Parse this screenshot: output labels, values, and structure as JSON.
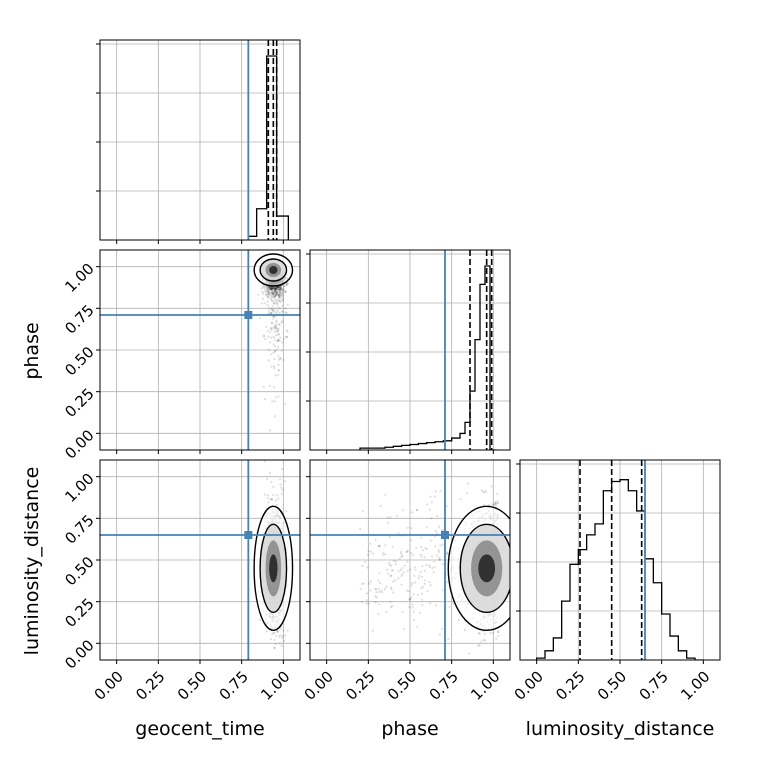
{
  "chart_data": {
    "type": "corner",
    "parameters": [
      "geocent_time",
      "phase",
      "luminosity_distance"
    ],
    "axis_labels": {
      "x": [
        "geocent_time",
        "phase",
        "luminosity_distance"
      ],
      "y": [
        "phase",
        "luminosity_distance"
      ]
    },
    "tick_labels": [
      "0.00",
      "0.25",
      "0.50",
      "0.75",
      "1.00"
    ],
    "tick_values": [
      0,
      0.25,
      0.5,
      0.75,
      1.0
    ],
    "axis_range": [
      -0.1,
      1.1
    ],
    "grid": true,
    "truth_values": {
      "geocent_time": 0.79,
      "phase": 0.71,
      "luminosity_distance": 0.65
    },
    "truth_color": "#4682b4",
    "histograms": {
      "geocent_time": {
        "bin_edges": [
          0.79,
          0.84,
          0.9,
          0.96,
          1.03
        ],
        "counts": [
          0.02,
          0.17,
          1.0,
          0.13
        ],
        "quantile_lines": [
          0.91,
          0.94,
          0.96
        ]
      },
      "phase": {
        "bin_edges": [
          0.2,
          0.25,
          0.3,
          0.35,
          0.4,
          0.45,
          0.5,
          0.55,
          0.6,
          0.65,
          0.7,
          0.75,
          0.8,
          0.83,
          0.86,
          0.89,
          0.92,
          0.95,
          0.98,
          1.02
        ],
        "counts": [
          0.01,
          0.01,
          0.01,
          0.015,
          0.02,
          0.025,
          0.03,
          0.035,
          0.04,
          0.045,
          0.05,
          0.065,
          0.09,
          0.15,
          0.32,
          0.6,
          0.9,
          1.0,
          0.0
        ],
        "quantile_lines": [
          0.86,
          0.96,
          0.99
        ]
      },
      "luminosity_distance": {
        "bin_edges": [
          0.0,
          0.05,
          0.1,
          0.15,
          0.2,
          0.25,
          0.3,
          0.35,
          0.4,
          0.45,
          0.5,
          0.55,
          0.6,
          0.65,
          0.7,
          0.75,
          0.8,
          0.85,
          0.9,
          0.95,
          1.0
        ],
        "counts": [
          0.01,
          0.05,
          0.12,
          0.32,
          0.52,
          0.6,
          0.68,
          0.74,
          0.92,
          0.97,
          0.98,
          0.92,
          0.81,
          0.55,
          0.42,
          0.25,
          0.13,
          0.05,
          0.01,
          0.0
        ],
        "quantile_lines": [
          0.26,
          0.45,
          0.63
        ]
      }
    },
    "scatter_panels": [
      {
        "x_param": "geocent_time",
        "y_param": "phase",
        "x_center": 0.95,
        "x_spread": 0.03,
        "y_center": 0.96,
        "y_spread": 0.06,
        "y_tail": 0.0
      },
      {
        "x_param": "geocent_time",
        "y_param": "luminosity_distance",
        "x_center": 0.95,
        "x_spread": 0.03,
        "y_center": 0.45,
        "y_spread": 0.18,
        "y_tail": 0.07
      },
      {
        "x_param": "phase",
        "y_param": "luminosity_distance",
        "x_center": 0.97,
        "x_spread": 0.06,
        "y_center": 0.45,
        "y_spread": 0.18,
        "y_tail": 0.25
      }
    ]
  }
}
